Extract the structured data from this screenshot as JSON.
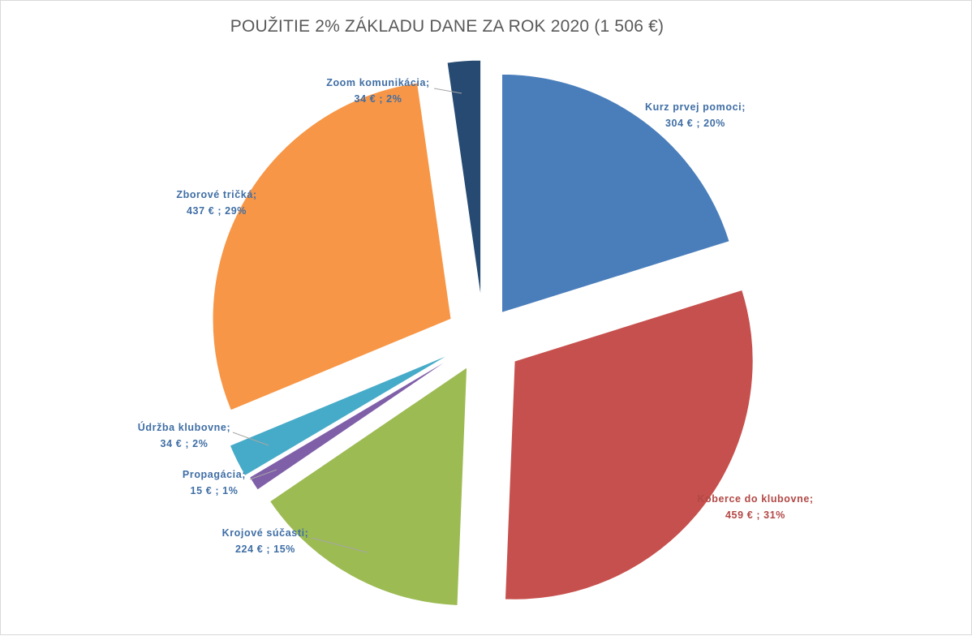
{
  "chart_data": {
    "type": "pie",
    "title": "POUŽITIE 2% ZÁKLADU DANE ZA ROK 2020 (1 506 €)",
    "slices": [
      {
        "label": "Kurz prvej pomoci",
        "value": 304,
        "percent": 20,
        "value_text": "304  € ; 20%",
        "color": "#4a7ebb",
        "label_color": "#3f6ea5"
      },
      {
        "label": "Koberce do klubovne",
        "value": 459,
        "percent": 31,
        "value_text": "459  € ; 31%",
        "color": "#c6504d",
        "label_color": "#b24845"
      },
      {
        "label": "Krojové súčasti",
        "value": 224,
        "percent": 15,
        "value_text": "224  € ; 15%",
        "color": "#9cbb53",
        "label_color": "#3f6ea5"
      },
      {
        "label": "Propagácia",
        "value": 15,
        "percent": 1,
        "value_text": "15  € ; 1%",
        "color": "#7f5fa8",
        "label_color": "#3f6ea5"
      },
      {
        "label": "Údržba klubovne",
        "value": 34,
        "percent": 2,
        "value_text": "34  € ; 2%",
        "color": "#46abc8",
        "label_color": "#3f6ea5"
      },
      {
        "label": "Zborové tričká",
        "value": 437,
        "percent": 29,
        "value_text": "437  € ; 29%",
        "color": "#f79646",
        "label_color": "#3f6ea5"
      },
      {
        "label": "Zoom komunikácia",
        "value": 34,
        "percent": 2,
        "value_text": "34  € ; 2%",
        "color": "#264a72",
        "label_color": "#3f6ea5"
      }
    ],
    "legend": "none",
    "exploded": true
  }
}
